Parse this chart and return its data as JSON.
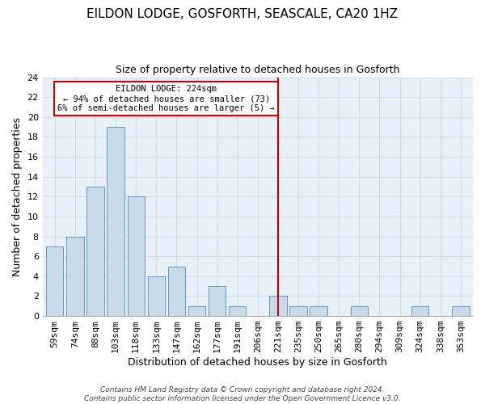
{
  "title": "EILDON LODGE, GOSFORTH, SEASCALE, CA20 1HZ",
  "subtitle": "Size of property relative to detached houses in Gosforth",
  "xlabel": "Distribution of detached houses by size in Gosforth",
  "ylabel": "Number of detached properties",
  "bin_labels": [
    "59sqm",
    "74sqm",
    "88sqm",
    "103sqm",
    "118sqm",
    "133sqm",
    "147sqm",
    "162sqm",
    "177sqm",
    "191sqm",
    "206sqm",
    "221sqm",
    "235sqm",
    "250sqm",
    "265sqm",
    "280sqm",
    "294sqm",
    "309sqm",
    "324sqm",
    "338sqm",
    "353sqm"
  ],
  "bar_heights": [
    7,
    8,
    13,
    19,
    12,
    4,
    5,
    1,
    3,
    1,
    0,
    2,
    1,
    1,
    0,
    1,
    0,
    0,
    1,
    0,
    1
  ],
  "bar_color": "#c9daea",
  "bar_edge_color": "#6699bb",
  "vline_x_index": 11,
  "vline_color": "#cc0000",
  "ylim": [
    0,
    24
  ],
  "yticks": [
    0,
    2,
    4,
    6,
    8,
    10,
    12,
    14,
    16,
    18,
    20,
    22,
    24
  ],
  "annotation_title": "EILDON LODGE: 224sqm",
  "annotation_line1": "← 94% of detached houses are smaller (73)",
  "annotation_line2": "6% of semi-detached houses are larger (5) →",
  "annotation_box_color": "#ffffff",
  "annotation_box_edge": "#cc0000",
  "footer1": "Contains HM Land Registry data © Crown copyright and database right 2024.",
  "footer2": "Contains public sector information licensed under the Open Government Licence v3.0.",
  "grid_color": "#d0dde8",
  "bg_color": "#e8f0f8",
  "title_fontsize": 11,
  "subtitle_fontsize": 9,
  "axis_label_fontsize": 9,
  "tick_fontsize": 8,
  "footer_fontsize": 6.5
}
